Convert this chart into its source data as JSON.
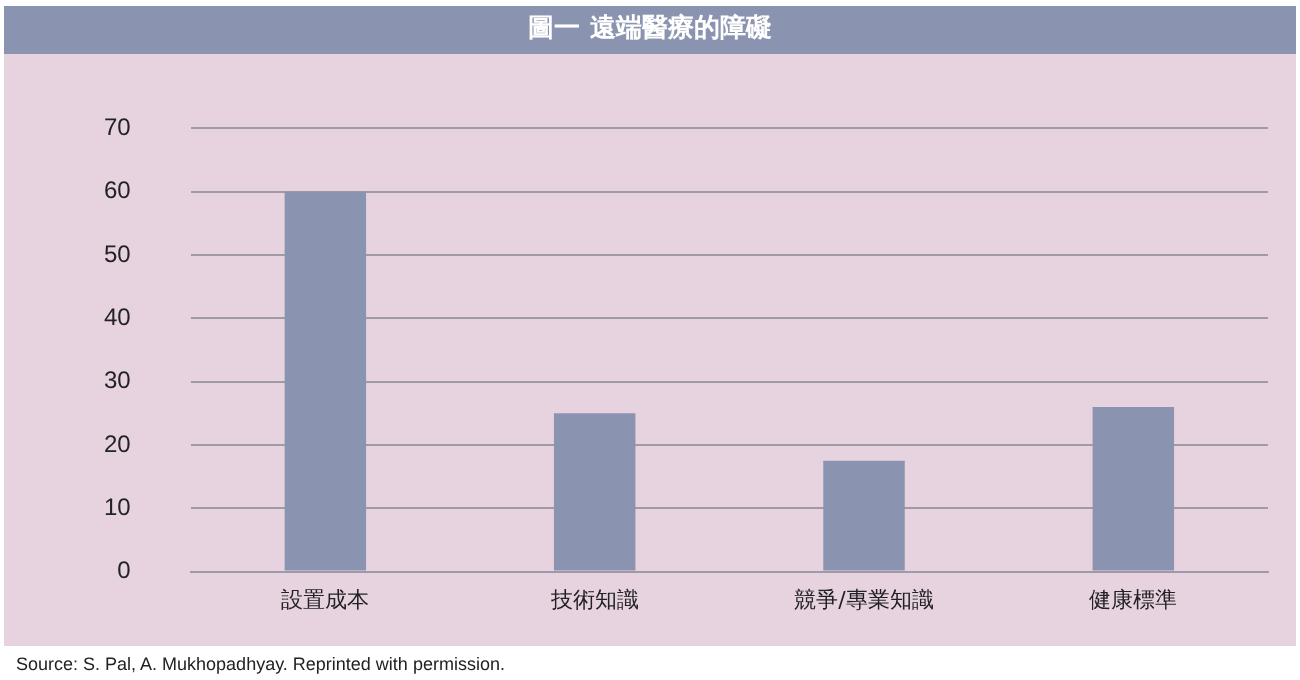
{
  "chart_data": {
    "type": "bar",
    "title": "圖一 遠端醫療的障礙",
    "categories": [
      "設置成本",
      "技術知識",
      "競爭/專業知識",
      "健康標準"
    ],
    "values": [
      60,
      25,
      17.5,
      26
    ],
    "color": "#8a94b0",
    "ylim": [
      0,
      70
    ],
    "yticks": [
      0,
      10,
      20,
      30,
      40,
      50,
      60,
      70
    ],
    "grid": "y",
    "annotations": [
      "Source:  S. Pal, A. Mukhopadhyay. Reprinted with permission."
    ]
  }
}
